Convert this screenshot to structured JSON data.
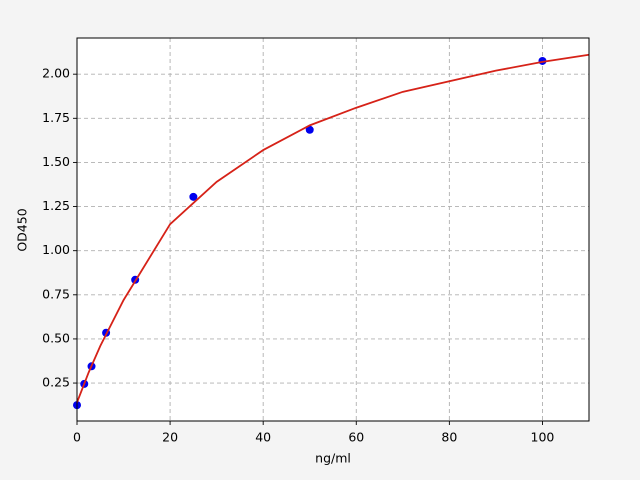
{
  "chart_data": {
    "type": "scatter",
    "xlabel": "ng/ml",
    "ylabel": "OD450",
    "xlim": [
      0,
      110
    ],
    "ylim": [
      0.035,
      2.205
    ],
    "xticks": [
      0,
      20,
      40,
      60,
      80,
      100
    ],
    "yticks": [
      0.25,
      {
        "value": 0.5,
        "label": "0.50"
      },
      0.75,
      {
        "value": 1,
        "label": "1.00"
      },
      1.25,
      {
        "value": 1.5,
        "label": "1.50"
      },
      1.75,
      {
        "value": 2,
        "label": "2.00"
      }
    ],
    "grid": true,
    "series": [
      {
        "type": "line",
        "color": "#d62218",
        "x": [
          0,
          2.5,
          5,
          10,
          20,
          30,
          40,
          50,
          60,
          70,
          80,
          90,
          100,
          110
        ],
        "values": [
          0.14,
          0.31,
          0.46,
          0.72,
          1.15,
          1.39,
          1.57,
          1.71,
          1.81,
          1.9,
          1.96,
          2.02,
          2.07,
          2.11
        ]
      },
      {
        "type": "scatter",
        "color": "#0000ee",
        "x": [
          0,
          1.56,
          3.12,
          6.25,
          12.5,
          25,
          50,
          100
        ],
        "values": [
          0.125,
          0.245,
          0.345,
          0.535,
          0.835,
          1.305,
          1.685,
          2.075
        ]
      }
    ]
  }
}
